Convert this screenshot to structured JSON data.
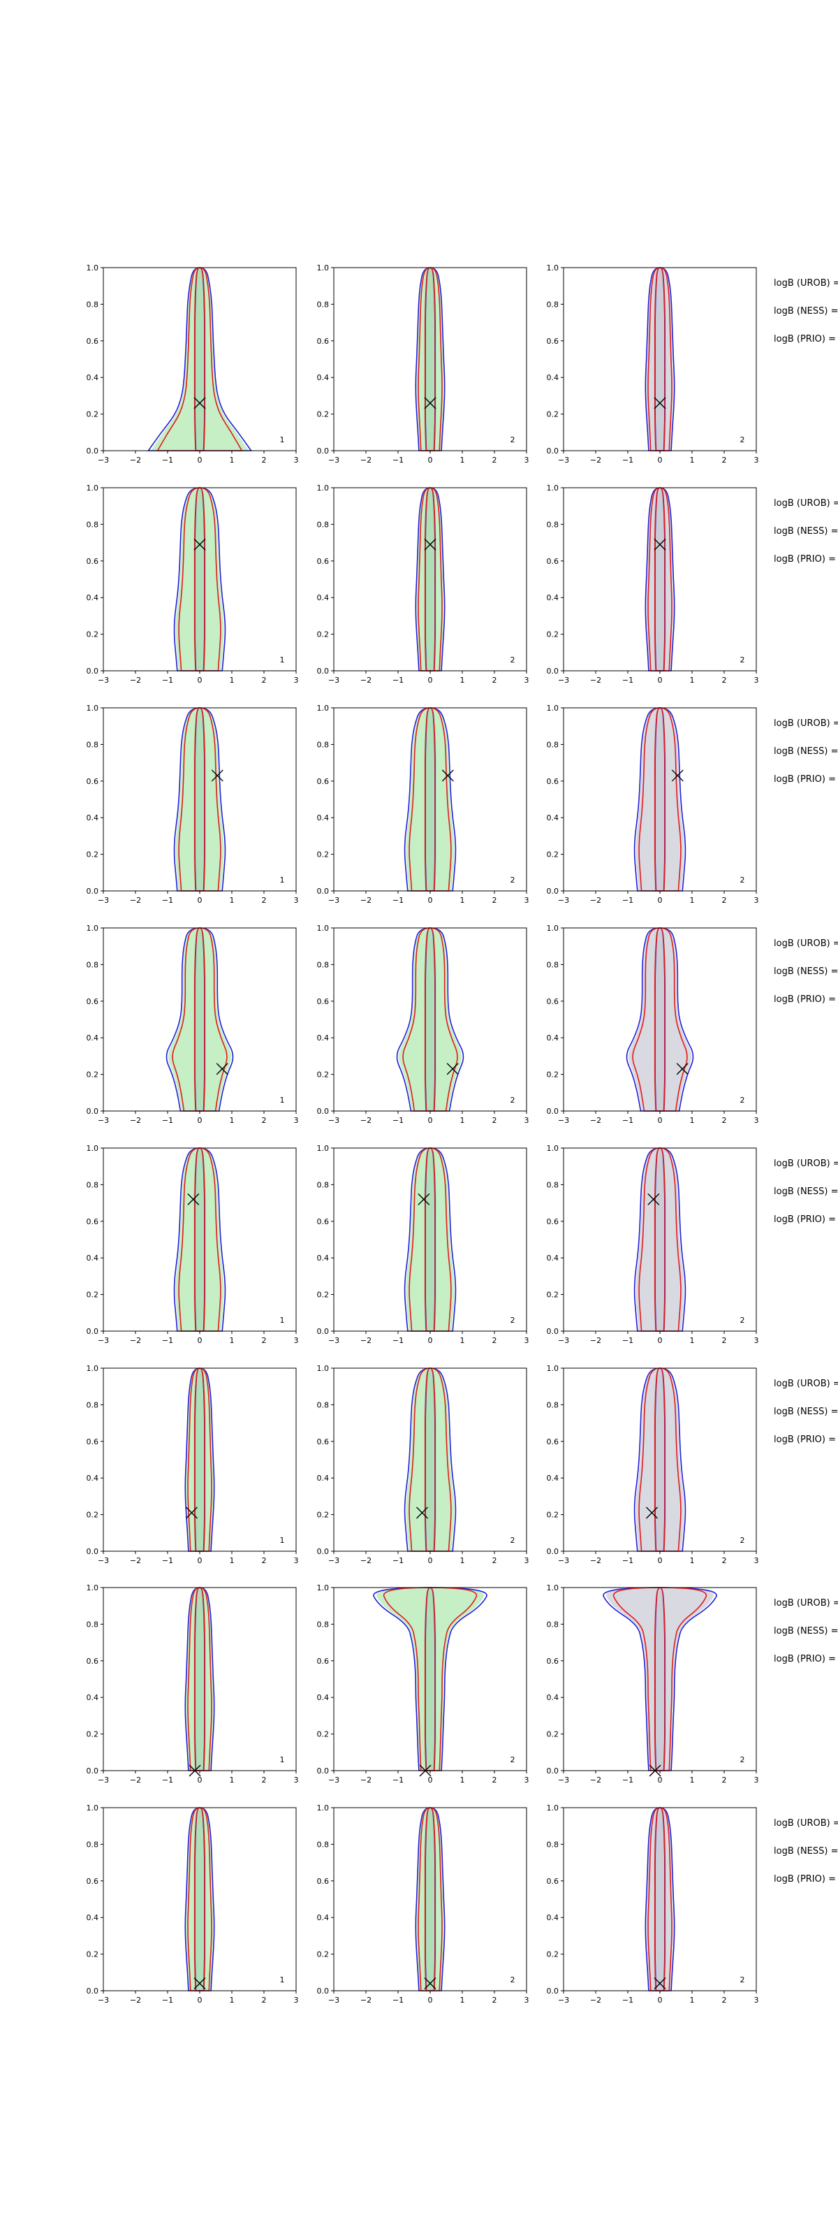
{
  "chart_data": {
    "type": "contour-grid",
    "title": "",
    "rows": 8,
    "cols": 3,
    "xlim": [
      -3,
      3
    ],
    "ylim": [
      0,
      1
    ],
    "x_ticks": [
      "−3",
      "−2",
      "−1",
      "0",
      "1",
      "2",
      "3"
    ],
    "y_ticks": [
      "0.0",
      "0.2",
      "0.4",
      "0.6",
      "0.8",
      "1.0"
    ],
    "panel_labels": [
      "1",
      "2",
      "2"
    ],
    "side_labels": [
      "logB (UROB) =",
      "logB (NESS) =",
      "logB (PRIO) ="
    ],
    "colors": {
      "blue_contour": "#1f1fd6",
      "red_contour": "#e01b1b",
      "green_fill": "#c6efc6",
      "grey_fill": "#d9d9e1",
      "marker": "#000000"
    },
    "markers": [
      {
        "x": 0.0,
        "y": 0.26
      },
      {
        "x": 0.0,
        "y": 0.69
      },
      {
        "x": 0.55,
        "y": 0.63
      },
      {
        "x": 0.7,
        "y": 0.23
      },
      {
        "x": -0.2,
        "y": 0.72
      },
      {
        "x": -0.25,
        "y": 0.21
      },
      {
        "x": -0.15,
        "y": 0.0
      },
      {
        "x": 0.0,
        "y": 0.04
      }
    ]
  }
}
